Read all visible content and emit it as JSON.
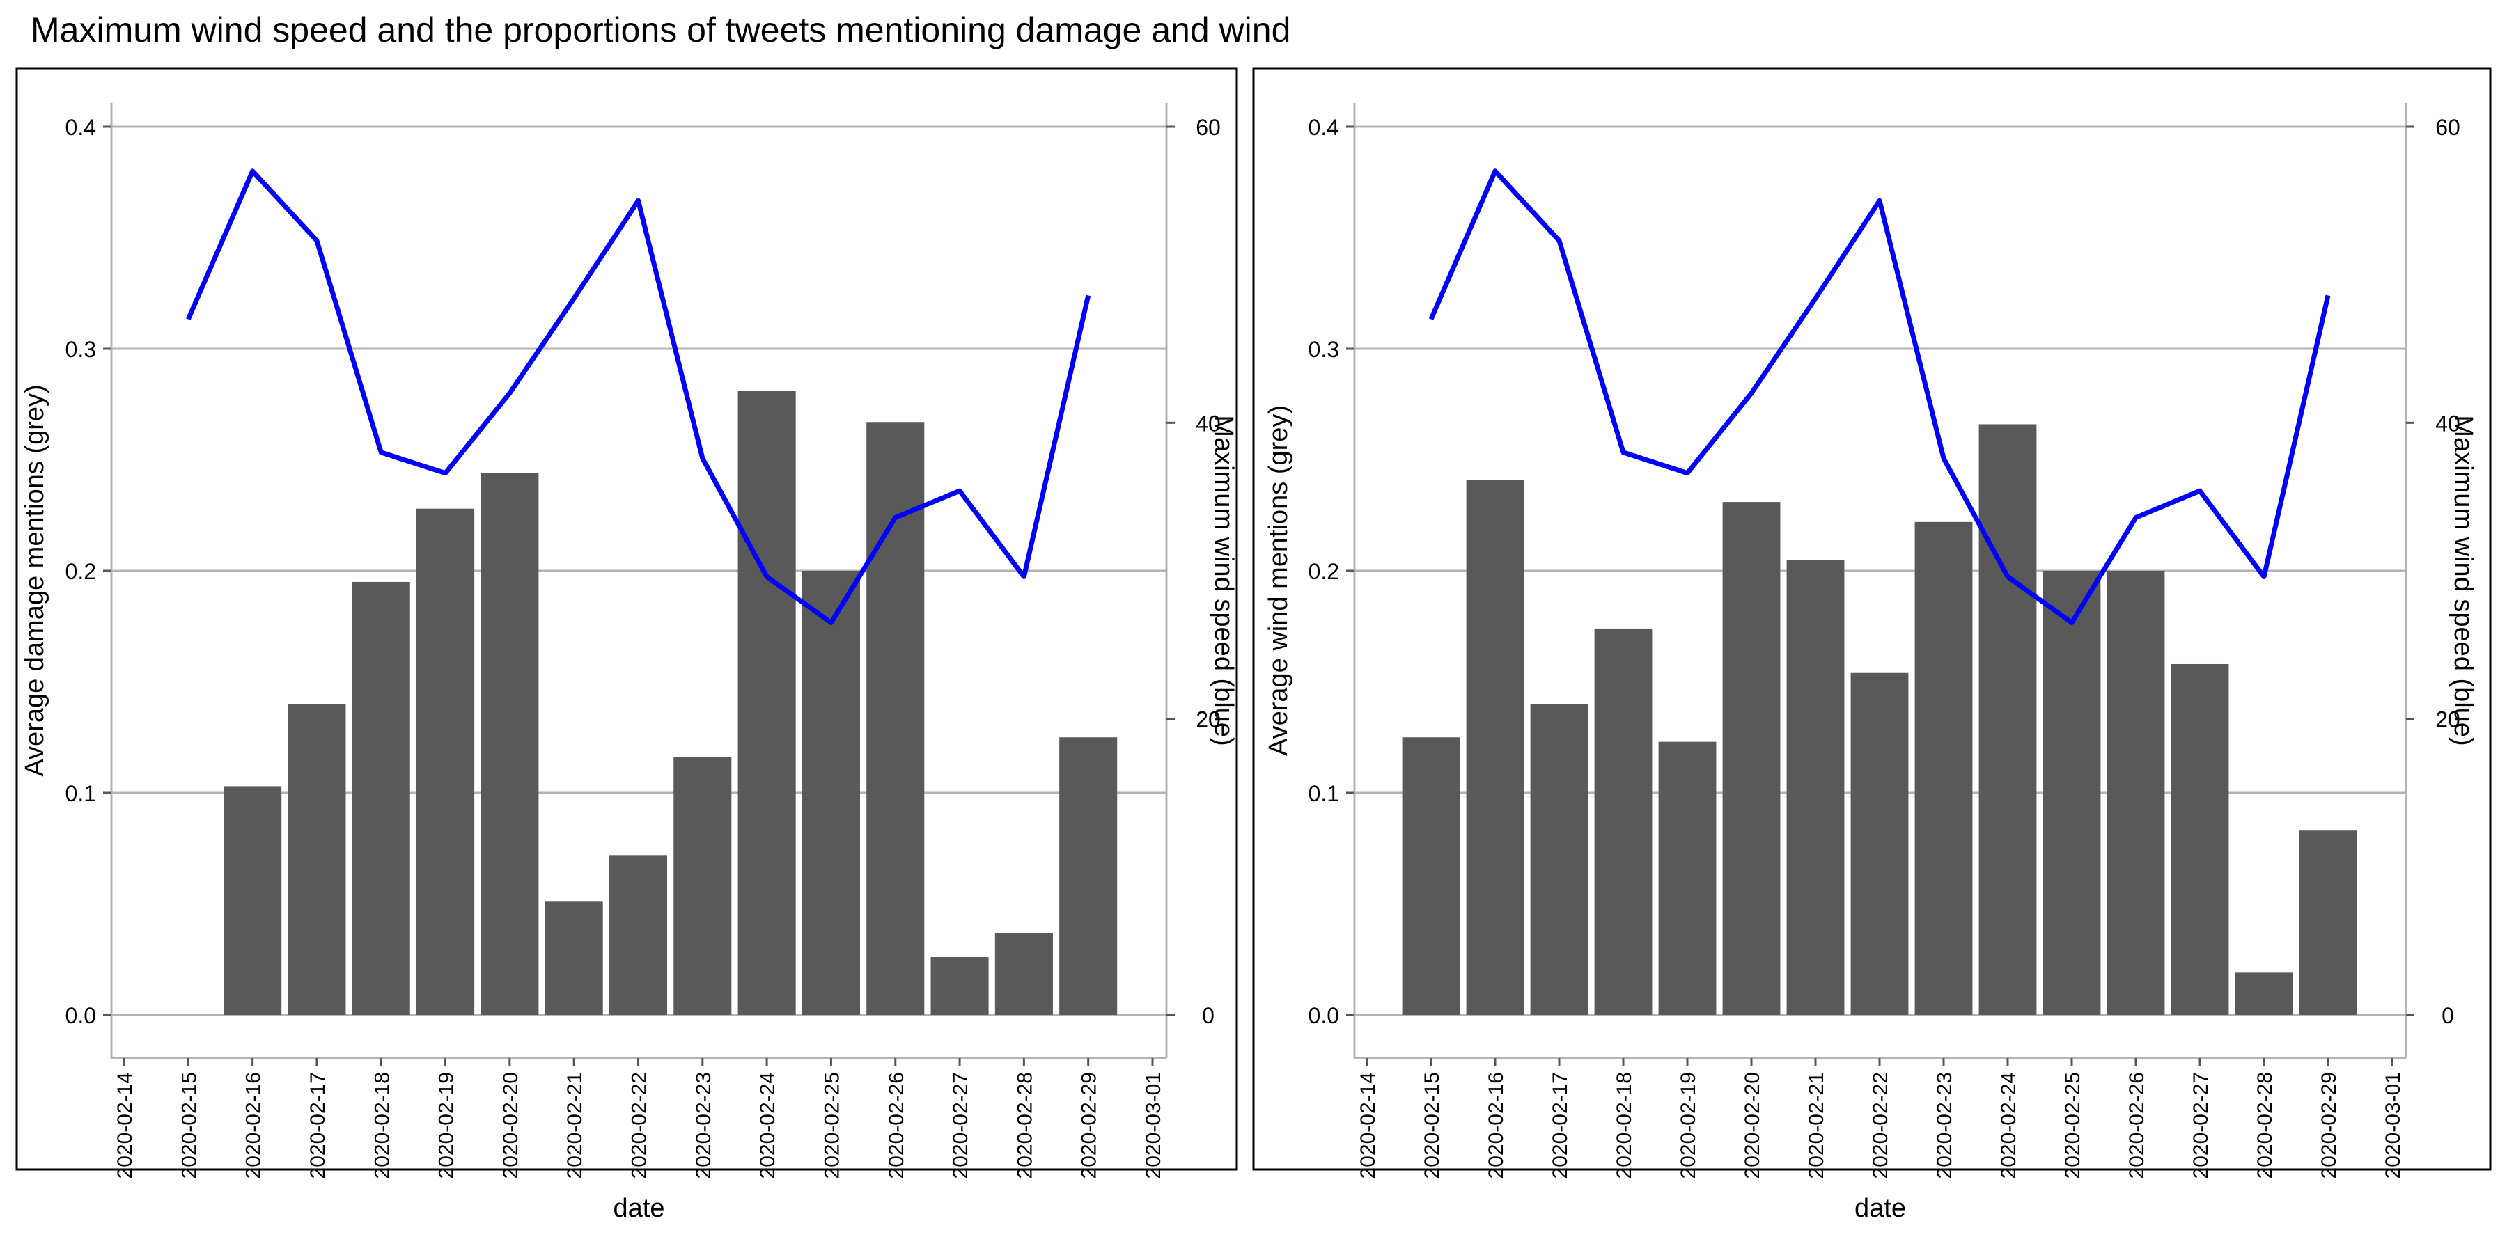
{
  "title": "Maximum wind speed and the proportions of tweets mentioning damage and wind",
  "colors": {
    "bar": "#595959",
    "line": "#0000ff",
    "grid": "#b3b3b3",
    "axis": "#b3b3b3",
    "frame": "#000000"
  },
  "chart_data": [
    {
      "type": "bar",
      "xlabel": "date",
      "ylabel": "Average damage mentions (grey)",
      "y2label": "Maximum wind speed (blue)",
      "ylim": [
        0,
        0.4
      ],
      "y2lim": [
        0,
        60
      ],
      "yticks": [
        "0.0",
        "0.1",
        "0.2",
        "0.3",
        "0.4"
      ],
      "y2ticks": [
        "0",
        "20",
        "40",
        "60"
      ],
      "xticks": [
        "2020-02-14",
        "2020-02-15",
        "2020-02-16",
        "2020-02-17",
        "2020-02-18",
        "2020-02-19",
        "2020-02-20",
        "2020-02-21",
        "2020-02-22",
        "2020-02-23",
        "2020-02-24",
        "2020-02-25",
        "2020-02-26",
        "2020-02-27",
        "2020-02-28",
        "2020-02-29",
        "2020-03-01"
      ],
      "bars": {
        "x": [
          "2020-02-16",
          "2020-02-17",
          "2020-02-18",
          "2020-02-19",
          "2020-02-20",
          "2020-02-21",
          "2020-02-22",
          "2020-02-23",
          "2020-02-24",
          "2020-02-25",
          "2020-02-26",
          "2020-02-27",
          "2020-02-28",
          "2020-02-29"
        ],
        "values": [
          0.103,
          0.14,
          0.195,
          0.228,
          0.244,
          0.051,
          0.072,
          0.116,
          0.281,
          0.2,
          0.267,
          0.026,
          0.037,
          0.125
        ]
      },
      "line": {
        "x": [
          "2020-02-15",
          "2020-02-16",
          "2020-02-17",
          "2020-02-18",
          "2020-02-19",
          "2020-02-20",
          "2020-02-21",
          "2020-02-22",
          "2020-02-23",
          "2020-02-24",
          "2020-02-25",
          "2020-02-26",
          "2020-02-27",
          "2020-02-28",
          "2020-02-29"
        ],
        "values": [
          47,
          57,
          52.3,
          38,
          36.6,
          42,
          48.4,
          55,
          37.6,
          29.6,
          26.5,
          33.6,
          35.4,
          29.6,
          48.6
        ]
      }
    },
    {
      "type": "bar",
      "xlabel": "date",
      "ylabel": "Average wind mentions (grey)",
      "y2label": "Maximum wind speed (blue)",
      "ylim": [
        0,
        0.4
      ],
      "y2lim": [
        0,
        60
      ],
      "yticks": [
        "0.0",
        "0.1",
        "0.2",
        "0.3",
        "0.4"
      ],
      "y2ticks": [
        "0",
        "20",
        "40",
        "60"
      ],
      "xticks": [
        "2020-02-14",
        "2020-02-15",
        "2020-02-16",
        "2020-02-17",
        "2020-02-18",
        "2020-02-19",
        "2020-02-20",
        "2020-02-21",
        "2020-02-22",
        "2020-02-23",
        "2020-02-24",
        "2020-02-25",
        "2020-02-26",
        "2020-02-27",
        "2020-02-28",
        "2020-02-29",
        "2020-03-01"
      ],
      "bars": {
        "x": [
          "2020-02-15",
          "2020-02-16",
          "2020-02-17",
          "2020-02-18",
          "2020-02-19",
          "2020-02-20",
          "2020-02-21",
          "2020-02-22",
          "2020-02-23",
          "2020-02-24",
          "2020-02-25",
          "2020-02-26",
          "2020-02-27",
          "2020-02-28",
          "2020-02-29"
        ],
        "values": [
          0.125,
          0.241,
          0.14,
          0.174,
          0.123,
          0.231,
          0.205,
          0.154,
          0.222,
          0.266,
          0.2,
          0.2,
          0.158,
          0.019,
          0.083
        ]
      },
      "line": {
        "x": [
          "2020-02-15",
          "2020-02-16",
          "2020-02-17",
          "2020-02-18",
          "2020-02-19",
          "2020-02-20",
          "2020-02-21",
          "2020-02-22",
          "2020-02-23",
          "2020-02-24",
          "2020-02-25",
          "2020-02-26",
          "2020-02-27",
          "2020-02-28",
          "2020-02-29"
        ],
        "values": [
          47,
          57,
          52.3,
          38,
          36.6,
          42,
          48.4,
          55,
          37.6,
          29.6,
          26.5,
          33.6,
          35.4,
          29.6,
          48.6
        ]
      }
    }
  ]
}
